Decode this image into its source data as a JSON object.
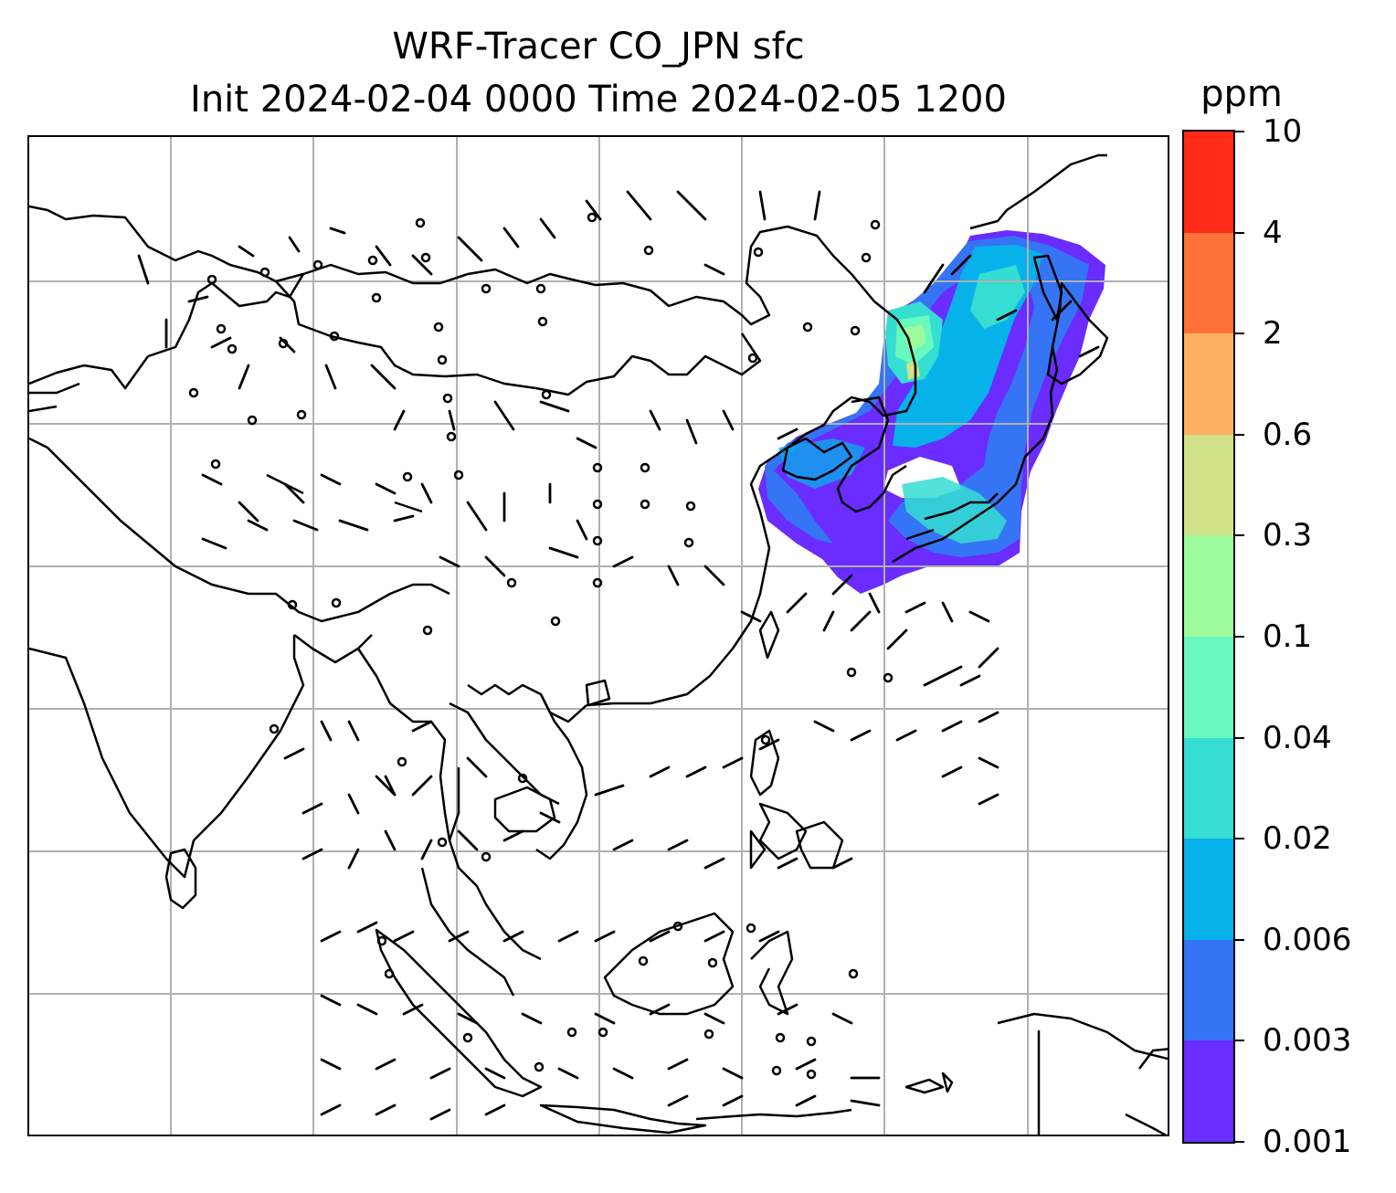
{
  "title": {
    "line1": "WRF-Tracer CO_JPN sfc",
    "line2": "Init 2024-02-04 0000 Time 2024-02-05 1200"
  },
  "colorbar": {
    "unit_label": "ppm",
    "levels": [
      "0.001",
      "0.003",
      "0.006",
      "0.02",
      "0.04",
      "0.1",
      "0.3",
      "0.6",
      "2",
      "4",
      "10"
    ],
    "colors": [
      "#6a2cff",
      "#3575f5",
      "#07b2eb",
      "#35ddd2",
      "#68f9be",
      "#9cfb9c",
      "#d0e187",
      "#fdb062",
      "#fe7137",
      "#ff2a17"
    ]
  },
  "map": {
    "gridlines": true,
    "gridline_color": "#b0b0b0",
    "coastline_color": "#000000",
    "tracer_field_region": "Japan / Korea / NE China",
    "wind_barbs": true
  }
}
